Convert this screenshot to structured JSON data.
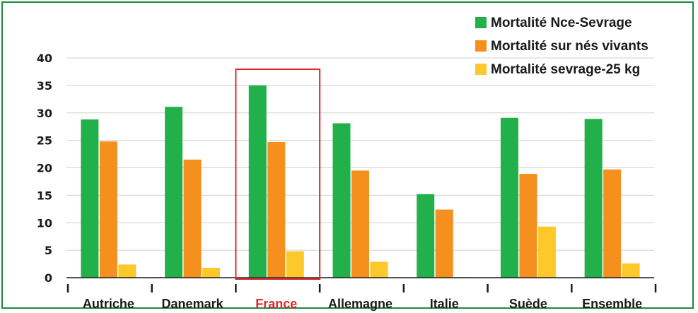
{
  "chart_data": {
    "type": "bar",
    "categories": [
      "Autriche",
      "Danemark",
      "France",
      "Allemagne",
      "Italie",
      "Suède",
      "Ensemble"
    ],
    "highlighted_category": "France",
    "highlight_color": "#e0252b",
    "series": [
      {
        "name": "Mortalité Nce-Sevrage",
        "color": "#22b04b",
        "values": [
          28.8,
          31.1,
          35.0,
          28.1,
          15.2,
          29.1,
          28.9
        ]
      },
      {
        "name": "Mortalité sur nés vivants",
        "color": "#f5901e",
        "values": [
          24.8,
          21.5,
          24.7,
          19.5,
          12.4,
          18.9,
          19.7
        ]
      },
      {
        "name": "Mortalité sevrage-25 kg",
        "color": "#fcc82a",
        "values": [
          2.4,
          1.8,
          4.8,
          2.9,
          0.1,
          9.3,
          2.6
        ]
      }
    ],
    "yticks": [
      0,
      5,
      10,
      15,
      20,
      25,
      30,
      35,
      40
    ],
    "ylim": [
      0,
      40
    ],
    "grid": true,
    "legend_position": "top-right",
    "title": "",
    "xlabel": "",
    "ylabel": ""
  }
}
